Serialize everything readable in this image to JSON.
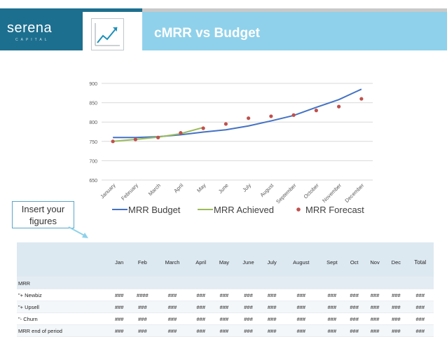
{
  "header": {
    "logo_text": "serena",
    "logo_sub": "CAPITAL",
    "title": "cMRR vs Budget",
    "icon": "chart-trend-icon"
  },
  "callout": {
    "text": "Insert your figures"
  },
  "colors": {
    "budget": "#4472c4",
    "achieved": "#9bbb59",
    "forecast": "#c0504d",
    "title_band": "#8fd1ea",
    "brand": "#1d6f8f"
  },
  "chart_data": {
    "type": "line",
    "categories": [
      "January",
      "February",
      "March",
      "April",
      "May",
      "June",
      "July",
      "August",
      "September",
      "October",
      "November",
      "December"
    ],
    "series": [
      {
        "name": "MRR Budget",
        "type": "line",
        "values": [
          760,
          760,
          762,
          767,
          774,
          780,
          790,
          803,
          817,
          838,
          858,
          885
        ]
      },
      {
        "name": "MRR Achieved",
        "type": "line",
        "values": [
          750,
          755,
          761,
          770,
          786,
          null,
          null,
          null,
          null,
          null,
          null,
          null
        ]
      },
      {
        "name": "MRR Forecast",
        "type": "scatter",
        "values": [
          750,
          755,
          760,
          772,
          784,
          795,
          810,
          815,
          818,
          830,
          840,
          860
        ]
      }
    ],
    "yticks": [
      650,
      700,
      750,
      800,
      850,
      900
    ],
    "ylim": [
      650,
      900
    ],
    "grid": true,
    "legend": "bottom",
    "title": "",
    "xlabel": "",
    "ylabel": ""
  },
  "table": {
    "columns": [
      "Jan",
      "Feb",
      "March",
      "April",
      "May",
      "June",
      "July",
      "August",
      "Sept",
      "Oct",
      "Nov",
      "Dec",
      "Total"
    ],
    "rows": [
      {
        "label": "MRR",
        "cells": [
          "",
          "",
          "",
          "",
          "",
          "",
          "",
          "",
          "",
          "",
          "",
          "",
          ""
        ]
      },
      {
        "label": "\"+ Newbiz",
        "cells": [
          "###",
          "####",
          "###",
          "###",
          "###",
          "###",
          "###",
          "###",
          "###",
          "###",
          "###",
          "###",
          "###"
        ]
      },
      {
        "label": "\"+ Upsell",
        "cells": [
          "###",
          "###",
          "###",
          "###",
          "###",
          "###",
          "###",
          "###",
          "###",
          "###",
          "###",
          "###",
          "###"
        ]
      },
      {
        "label": "\"- Churn",
        "cells": [
          "###",
          "###",
          "###",
          "###",
          "###",
          "###",
          "###",
          "###",
          "###",
          "###",
          "###",
          "###",
          "###"
        ]
      },
      {
        "label": "MRR end of period",
        "cells": [
          "###",
          "###",
          "###",
          "###",
          "###",
          "###",
          "###",
          "###",
          "###",
          "###",
          "###",
          "###",
          "###"
        ]
      }
    ]
  }
}
